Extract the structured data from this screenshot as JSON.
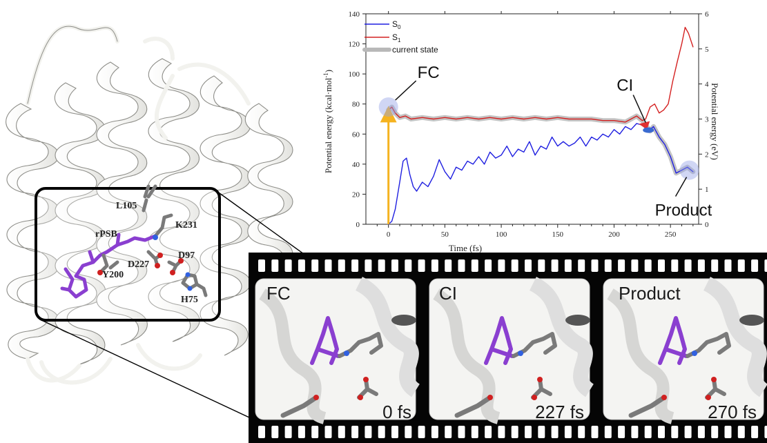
{
  "residues": {
    "l105": "L105",
    "k231": "K231",
    "rpsb": "rPSB",
    "d227": "D227",
    "d97": "D97",
    "y200": "Y200",
    "h75": "H75"
  },
  "chart_data": {
    "type": "line",
    "xlabel": "Time (fs)",
    "ylabel_left": "Potential energy (kcal·mol",
    "ylabel_left_sup": "-1",
    "ylabel_left_close": ")",
    "ylabel_right": "Potential energy (eV)",
    "xlim": [
      -20,
      275
    ],
    "ylim_left": [
      0,
      140
    ],
    "ylim_right": [
      0,
      6
    ],
    "x_ticks": [
      "0",
      "50",
      "100",
      "150",
      "200",
      "250"
    ],
    "y_left_ticks": [
      "0",
      "20",
      "40",
      "60",
      "80",
      "100",
      "120",
      "140"
    ],
    "y_right_ticks": [
      "0",
      "1",
      "2",
      "3",
      "4",
      "5",
      "6"
    ],
    "legend": [
      {
        "label": "S",
        "sub": "0",
        "color": "#1f1fe0"
      },
      {
        "label": "S",
        "sub": "1",
        "color": "#d42020"
      },
      {
        "label": "current state",
        "sub": "",
        "color": "#b8b8b8"
      }
    ],
    "series": [
      {
        "name": "S0",
        "color": "#1f1fe0",
        "x": [
          0,
          3,
          6,
          10,
          13,
          16,
          19,
          22,
          25,
          30,
          35,
          40,
          45,
          50,
          55,
          60,
          65,
          70,
          75,
          80,
          85,
          90,
          95,
          100,
          105,
          110,
          115,
          120,
          125,
          130,
          135,
          140,
          145,
          150,
          155,
          160,
          165,
          170,
          175,
          180,
          185,
          190,
          195,
          200,
          205,
          210,
          215,
          220,
          225,
          230,
          235,
          240,
          245,
          250,
          255,
          260,
          265,
          270
        ],
        "y": [
          0,
          2,
          10,
          28,
          42,
          44,
          33,
          25,
          22,
          28,
          25,
          32,
          43,
          35,
          30,
          38,
          36,
          42,
          40,
          45,
          40,
          48,
          44,
          46,
          52,
          45,
          50,
          48,
          55,
          46,
          52,
          50,
          58,
          52,
          55,
          52,
          54,
          58,
          52,
          58,
          56,
          60,
          58,
          63,
          60,
          65,
          63,
          67,
          66,
          62,
          65,
          58,
          53,
          45,
          34,
          36,
          38,
          35
        ]
      },
      {
        "name": "S1",
        "color": "#d42020",
        "x": [
          0,
          3,
          6,
          10,
          15,
          20,
          30,
          40,
          50,
          60,
          70,
          80,
          90,
          100,
          110,
          120,
          130,
          140,
          150,
          160,
          170,
          180,
          190,
          200,
          210,
          215,
          220,
          225,
          228,
          232,
          236,
          240,
          244,
          248,
          252,
          256,
          260,
          263,
          266,
          270
        ],
        "y": [
          76,
          78,
          74,
          71,
          72,
          70,
          71,
          70,
          71,
          70,
          71,
          70,
          71,
          70,
          71,
          70,
          71,
          70,
          71,
          70,
          70,
          70,
          69,
          69,
          68,
          70,
          72,
          69,
          70,
          78,
          80,
          74,
          76,
          80,
          95,
          108,
          120,
          131,
          127,
          118
        ]
      },
      {
        "name": "current state",
        "color": "#b8b8b8",
        "x": [
          0,
          3,
          6,
          10,
          15,
          20,
          30,
          40,
          50,
          60,
          70,
          80,
          90,
          100,
          110,
          120,
          130,
          140,
          150,
          160,
          170,
          180,
          190,
          200,
          210,
          215,
          220,
          225,
          228,
          232,
          235,
          240,
          245,
          250,
          255,
          260,
          265,
          270
        ],
        "y": [
          76,
          78,
          74,
          71,
          72,
          70,
          71,
          70,
          71,
          70,
          71,
          70,
          71,
          70,
          71,
          70,
          71,
          70,
          71,
          70,
          70,
          70,
          69,
          69,
          68,
          70,
          72,
          69,
          66,
          62,
          65,
          58,
          53,
          45,
          34,
          36,
          38,
          35
        ]
      }
    ],
    "annotations": [
      {
        "text": "FC",
        "x": 0,
        "y": 78
      },
      {
        "text": "CI",
        "x": 228,
        "y": 64
      },
      {
        "text": "Product",
        "x": 268,
        "y": 36
      }
    ],
    "excitation_arrow": {
      "x": 0,
      "from": 0,
      "to": 76,
      "color": "#f5b320"
    }
  },
  "frames": [
    {
      "label": "FC",
      "time": "0 fs"
    },
    {
      "label": "CI",
      "time": "227 fs"
    },
    {
      "label": "Product",
      "time": "270 fs"
    }
  ]
}
